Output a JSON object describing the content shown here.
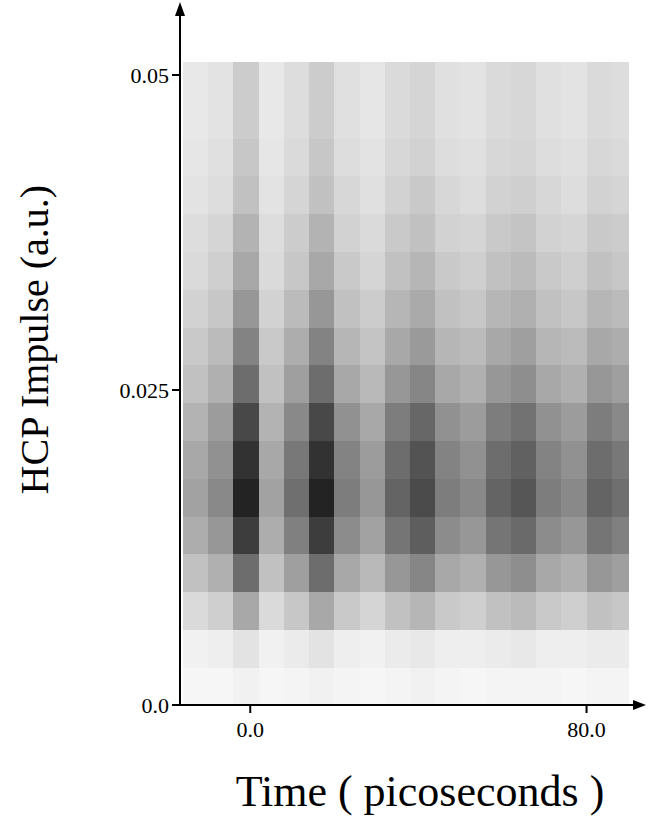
{
  "chart_data": {
    "type": "heatmap",
    "x_label": "Time ( picoseconds )",
    "y_label": "HCP Impulse (a.u.)",
    "xlim": [
      -16,
      92
    ],
    "ylim": [
      0,
      0.055
    ],
    "xticks": [
      {
        "value": 0,
        "label": "0.0"
      },
      {
        "value": 80,
        "label": "80.0"
      }
    ],
    "yticks": [
      {
        "value": 0,
        "label": "0.0"
      },
      0.025,
      0.05
    ],
    "x_edges": [
      -16,
      -10,
      -4,
      2,
      8,
      14,
      20,
      26,
      32,
      38,
      44,
      50,
      56,
      62,
      68,
      74,
      80,
      86,
      90
    ],
    "y_edges": [
      0,
      0.003,
      0.006,
      0.009,
      0.012,
      0.015,
      0.018,
      0.021,
      0.024,
      0.027,
      0.03,
      0.033,
      0.036,
      0.039,
      0.042,
      0.045,
      0.048,
      0.051
    ],
    "value_range": [
      0,
      0.8
    ],
    "cells": [
      [
        0.02,
        0.02,
        0.04,
        0.02,
        0.03,
        0.04,
        0.03,
        0.02,
        0.03,
        0.04,
        0.03,
        0.02,
        0.03,
        0.03,
        0.03,
        0.02,
        0.03,
        0.03
      ],
      [
        0.04,
        0.05,
        0.09,
        0.04,
        0.06,
        0.09,
        0.05,
        0.04,
        0.06,
        0.07,
        0.05,
        0.05,
        0.06,
        0.07,
        0.05,
        0.05,
        0.06,
        0.06
      ],
      [
        0.12,
        0.16,
        0.3,
        0.12,
        0.19,
        0.3,
        0.18,
        0.14,
        0.21,
        0.25,
        0.18,
        0.16,
        0.21,
        0.23,
        0.18,
        0.16,
        0.21,
        0.19
      ],
      [
        0.21,
        0.27,
        0.51,
        0.21,
        0.33,
        0.51,
        0.3,
        0.24,
        0.36,
        0.42,
        0.3,
        0.27,
        0.36,
        0.39,
        0.3,
        0.27,
        0.36,
        0.33
      ],
      [
        0.28,
        0.36,
        0.68,
        0.28,
        0.44,
        0.68,
        0.4,
        0.32,
        0.48,
        0.56,
        0.4,
        0.36,
        0.48,
        0.52,
        0.4,
        0.36,
        0.48,
        0.44
      ],
      [
        0.32,
        0.41,
        0.77,
        0.32,
        0.5,
        0.77,
        0.45,
        0.36,
        0.54,
        0.63,
        0.45,
        0.41,
        0.54,
        0.59,
        0.45,
        0.41,
        0.54,
        0.5
      ],
      [
        0.3,
        0.38,
        0.72,
        0.3,
        0.47,
        0.72,
        0.43,
        0.34,
        0.51,
        0.6,
        0.43,
        0.38,
        0.51,
        0.55,
        0.43,
        0.38,
        0.51,
        0.47
      ],
      [
        0.26,
        0.34,
        0.64,
        0.26,
        0.41,
        0.64,
        0.38,
        0.3,
        0.45,
        0.53,
        0.38,
        0.34,
        0.45,
        0.49,
        0.38,
        0.34,
        0.45,
        0.41
      ],
      [
        0.21,
        0.27,
        0.51,
        0.21,
        0.33,
        0.51,
        0.3,
        0.24,
        0.36,
        0.42,
        0.3,
        0.27,
        0.36,
        0.39,
        0.3,
        0.27,
        0.36,
        0.33
      ],
      [
        0.18,
        0.23,
        0.43,
        0.18,
        0.28,
        0.43,
        0.25,
        0.2,
        0.3,
        0.35,
        0.25,
        0.23,
        0.3,
        0.33,
        0.25,
        0.23,
        0.3,
        0.28
      ],
      [
        0.15,
        0.19,
        0.36,
        0.15,
        0.23,
        0.36,
        0.21,
        0.17,
        0.25,
        0.29,
        0.21,
        0.19,
        0.25,
        0.27,
        0.21,
        0.19,
        0.25,
        0.23
      ],
      [
        0.12,
        0.16,
        0.3,
        0.12,
        0.19,
        0.3,
        0.18,
        0.14,
        0.21,
        0.25,
        0.18,
        0.16,
        0.21,
        0.23,
        0.18,
        0.16,
        0.21,
        0.19
      ],
      [
        0.11,
        0.14,
        0.26,
        0.11,
        0.17,
        0.26,
        0.15,
        0.12,
        0.18,
        0.21,
        0.15,
        0.14,
        0.18,
        0.2,
        0.15,
        0.14,
        0.18,
        0.17
      ],
      [
        0.09,
        0.11,
        0.21,
        0.09,
        0.14,
        0.21,
        0.13,
        0.1,
        0.15,
        0.18,
        0.13,
        0.11,
        0.15,
        0.16,
        0.13,
        0.11,
        0.15,
        0.14
      ],
      [
        0.08,
        0.1,
        0.19,
        0.08,
        0.12,
        0.19,
        0.11,
        0.09,
        0.13,
        0.15,
        0.11,
        0.1,
        0.13,
        0.14,
        0.11,
        0.1,
        0.13,
        0.12
      ],
      [
        0.07,
        0.09,
        0.17,
        0.07,
        0.11,
        0.17,
        0.1,
        0.08,
        0.12,
        0.14,
        0.1,
        0.09,
        0.12,
        0.13,
        0.1,
        0.09,
        0.12,
        0.11
      ],
      [
        0.07,
        0.09,
        0.17,
        0.07,
        0.11,
        0.17,
        0.1,
        0.08,
        0.12,
        0.14,
        0.1,
        0.09,
        0.12,
        0.13,
        0.1,
        0.09,
        0.12,
        0.11
      ]
    ]
  }
}
